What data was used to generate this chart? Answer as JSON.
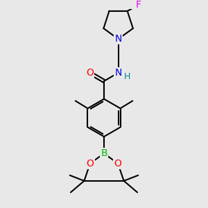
{
  "bg_color": "#e8e8e8",
  "atom_colors": {
    "C": "#000000",
    "N": "#0000dd",
    "O": "#ff0000",
    "B": "#00bb00",
    "F": "#ee00ee",
    "H": "#008888"
  },
  "bond_color": "#000000",
  "bond_width": 1.5,
  "font_size": 9,
  "fig_width": 3.0,
  "fig_height": 3.0,
  "dpi": 100
}
